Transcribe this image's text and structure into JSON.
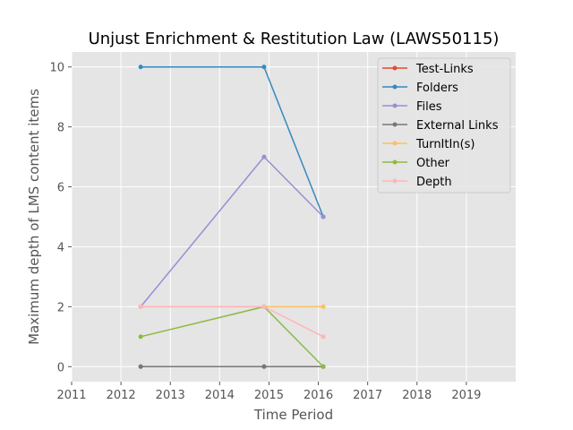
{
  "chart_data": {
    "type": "line",
    "title": "Unjust Enrichment & Restitution Law (LAWS50115)",
    "xlabel": "Time Period",
    "ylabel": "Maximum depth of LMS content items",
    "xlim": [
      2011,
      2020
    ],
    "ylim": [
      -0.5,
      10.5
    ],
    "x_ticks": [
      "2011",
      "2012",
      "2013",
      "2014",
      "2015",
      "2016",
      "2017",
      "2018",
      "2019"
    ],
    "y_ticks": [
      "0",
      "2",
      "4",
      "6",
      "8",
      "10"
    ],
    "grid": true,
    "legend_position": "top-right",
    "x": [
      2012.4,
      2014.9,
      2016.1
    ],
    "series": [
      {
        "name": "Test-Links",
        "color": "#e24a33",
        "values": [
          0,
          0,
          0
        ]
      },
      {
        "name": "Folders",
        "color": "#348abd",
        "values": [
          10,
          10,
          5
        ]
      },
      {
        "name": "Files",
        "color": "#988ed5",
        "values": [
          2,
          7,
          5
        ]
      },
      {
        "name": "External Links",
        "color": "#777777",
        "values": [
          0,
          0,
          0
        ]
      },
      {
        "name": "TurnItIn(s)",
        "color": "#fbc15e",
        "values": [
          2,
          2,
          2
        ]
      },
      {
        "name": "Other",
        "color": "#8eba42",
        "values": [
          1,
          2,
          0
        ]
      },
      {
        "name": "Depth",
        "color": "#ffb5b8",
        "values": [
          2,
          2,
          1
        ]
      }
    ]
  }
}
